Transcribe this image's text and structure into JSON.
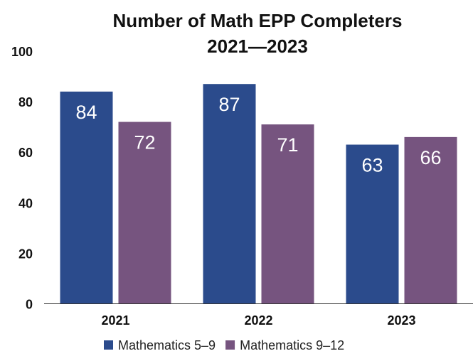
{
  "chart_data": {
    "type": "bar",
    "title": "Number of Math EPP Completers",
    "subtitle": "2021—2023",
    "categories": [
      "2021",
      "2022",
      "2023"
    ],
    "series": [
      {
        "name": "Mathematics 5–9",
        "values": [
          84,
          87,
          63
        ],
        "color": "#2b4b8c"
      },
      {
        "name": "Mathematics 9–12",
        "values": [
          72,
          71,
          66
        ],
        "color": "#76547f"
      }
    ],
    "ylim": [
      0,
      100
    ],
    "yticks": [
      "0",
      "20",
      "40",
      "60",
      "80",
      "100"
    ],
    "grid": false,
    "legend": "bottom",
    "data_labels": true,
    "xlabel": "",
    "ylabel": ""
  }
}
